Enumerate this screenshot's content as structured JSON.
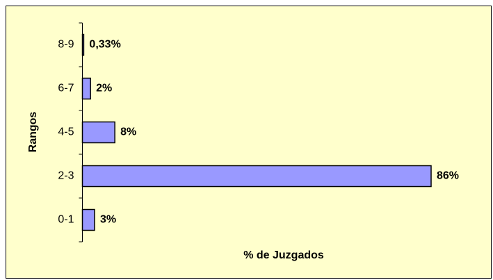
{
  "chart_data": {
    "type": "bar",
    "orientation": "horizontal",
    "ylabel": "Rangos",
    "xlabel": "% de Juzgados",
    "categories": [
      "0-1",
      "2-3",
      "4-5",
      "6-7",
      "8-9"
    ],
    "values": [
      3,
      86,
      8,
      2,
      0.33
    ],
    "value_labels": [
      "3%",
      "86%",
      "8%",
      "2%",
      "0,33%"
    ],
    "color": "#9999ff",
    "xlim": [
      0,
      86
    ]
  }
}
